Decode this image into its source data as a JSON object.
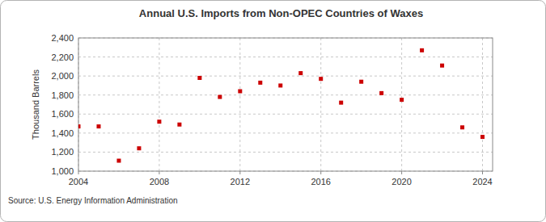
{
  "chart_data": {
    "type": "scatter",
    "title": "Annual U.S. Imports from Non-OPEC Countries of Waxes",
    "y_label": "Thousand Barrels",
    "source": "Source: U.S. Energy Information Administration",
    "x": [
      2004,
      2005,
      2006,
      2007,
      2008,
      2009,
      2010,
      2011,
      2012,
      2013,
      2014,
      2015,
      2016,
      2017,
      2018,
      2019,
      2020,
      2021,
      2022,
      2023,
      2024
    ],
    "values": [
      1470,
      1470,
      1110,
      1240,
      1520,
      1490,
      1980,
      1780,
      1840,
      1930,
      1900,
      2030,
      1970,
      1720,
      1940,
      1820,
      1750,
      2270,
      2110,
      1460,
      1360
    ],
    "color": "#cc0000",
    "marker": "square",
    "grid": true,
    "xlim": [
      2004,
      2024.5
    ],
    "xticks": [
      2004,
      2008,
      2012,
      2016,
      2020,
      2024
    ],
    "ylim": [
      1000,
      2400
    ],
    "yticks": [
      {
        "value": 1000,
        "label": "1,000"
      },
      {
        "value": 1200,
        "label": "1,200"
      },
      {
        "value": 1400,
        "label": "1,400"
      },
      {
        "value": 1600,
        "label": "1,600"
      },
      {
        "value": 1800,
        "label": "1,800"
      },
      {
        "value": 2000,
        "label": "2,000"
      },
      {
        "value": 2200,
        "label": "2,200"
      },
      {
        "value": 2400,
        "label": "2,400"
      }
    ]
  }
}
